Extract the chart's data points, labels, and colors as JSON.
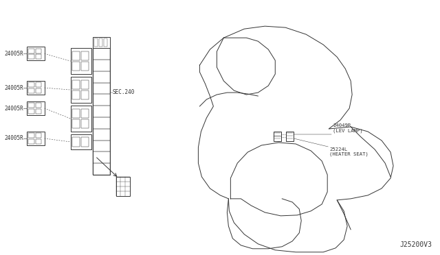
{
  "bg_color": "#ffffff",
  "line_color": "#333333",
  "text_color": "#333333",
  "diagram_id": "J25200V3",
  "labels_left": [
    "24005R",
    "24005R",
    "24005R",
    "24005R"
  ],
  "label_sec240": "SEC.240",
  "label_lev": "24049R\n(LEV LAMP)",
  "label_heater": "25224L\n(HEATER SEAT)"
}
